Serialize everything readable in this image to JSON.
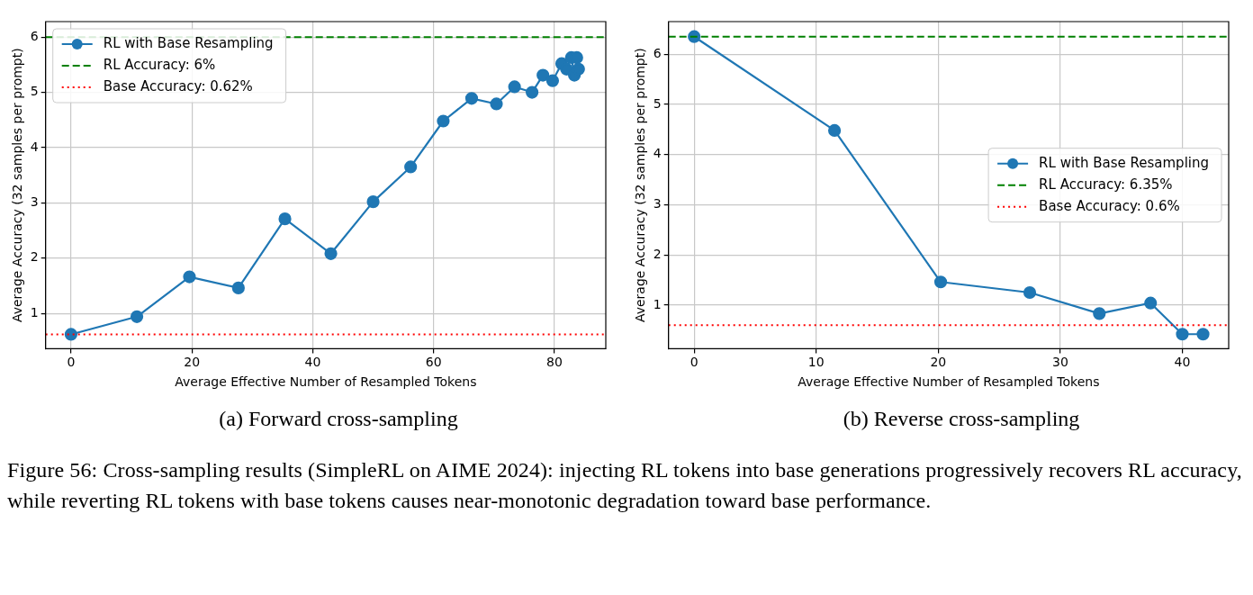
{
  "chart_data": [
    {
      "type": "line",
      "title": "(a) Forward cross-sampling",
      "xlabel": "Average Effective Number of Resampled Tokens",
      "ylabel": "Average Accuracy (32 samples per prompt)",
      "x": [
        0,
        10.9,
        19.6,
        27.7,
        35.4,
        43,
        50,
        56.2,
        61.6,
        66.3,
        70.4,
        73.4,
        76.3,
        78.1,
        79.7,
        81.2,
        82,
        82.8,
        83.3,
        83.7,
        84
      ],
      "series": [
        {
          "name": "RL with Base Resampling",
          "color": "#1f77b4",
          "values": [
            0.62,
            0.94,
            1.66,
            1.46,
            2.71,
            2.08,
            3.02,
            3.65,
            4.48,
            4.89,
            4.79,
            5.1,
            5.0,
            5.31,
            5.21,
            5.52,
            5.42,
            5.63,
            5.31,
            5.63,
            5.42
          ]
        }
      ],
      "ref_lines": [
        {
          "axis": "y",
          "value": 6,
          "label": "RL Accuracy: 6%",
          "color": "#008000",
          "line_style": "dashed"
        },
        {
          "axis": "y",
          "value": 0.62,
          "label": "Base Accuracy: 0.62%",
          "color": "#ff0000",
          "line_style": "dotted"
        }
      ],
      "xlim": [
        -4.2,
        88.5
      ],
      "xticks": [
        0,
        20,
        40,
        60,
        80
      ],
      "ylim": [
        0.36,
        6.28
      ],
      "yticks": [
        1,
        2,
        3,
        4,
        5,
        6
      ],
      "grid": true,
      "legend": "top left",
      "marker": "circle",
      "line_style": "solid",
      "annotations": [
        "Figure 56: Cross-sampling results (SimpleRL on AIME 2024): injecting RL tokens into base generations progressively recovers RL accuracy, while reverting RL tokens with base tokens causes near-monotonic degradation toward base performance."
      ]
    },
    {
      "type": "line",
      "title": "(b) Reverse cross-sampling",
      "xlabel": "Average Effective Number of Resampled Tokens",
      "ylabel": "Average Accuracy (32 samples per prompt)",
      "x": [
        0,
        11.5,
        20.2,
        27.5,
        33.2,
        37.4,
        40,
        41.7
      ],
      "series": [
        {
          "name": "RL with Base Resampling",
          "color": "#1f77b4",
          "values": [
            6.35,
            4.48,
            1.46,
            1.25,
            0.83,
            1.04,
            0.42,
            0.42
          ]
        }
      ],
      "ref_lines": [
        {
          "axis": "y",
          "value": 6.35,
          "label": "RL Accuracy: 6.35%",
          "color": "#008000",
          "line_style": "dashed"
        },
        {
          "axis": "y",
          "value": 0.6,
          "label": "Base Accuracy: 0.6%",
          "color": "#ff0000",
          "line_style": "dotted"
        }
      ],
      "xlim": [
        -2.1,
        43.8
      ],
      "xticks": [
        0,
        10,
        20,
        30,
        40
      ],
      "ylim": [
        0.13,
        6.65
      ],
      "yticks": [
        1,
        2,
        3,
        4,
        5,
        6
      ],
      "grid": true,
      "legend": "right",
      "marker": "circle",
      "line_style": "solid"
    }
  ]
}
